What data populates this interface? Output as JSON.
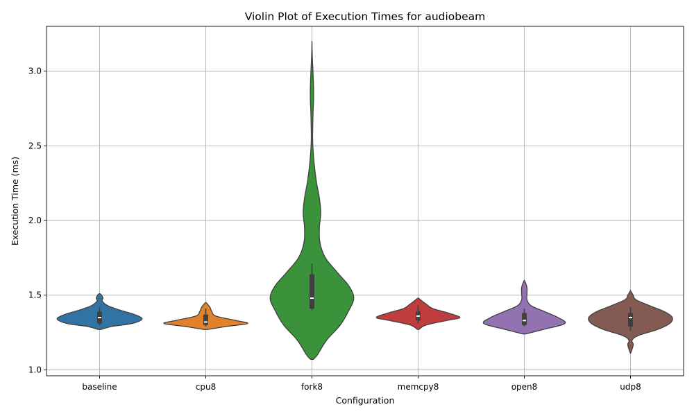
{
  "chart_data": {
    "type": "violin",
    "title": "Violin Plot of Execution Times for audiobeam",
    "xlabel": "Configuration",
    "ylabel": "Execution Time (ms)",
    "categories": [
      "baseline",
      "cpu8",
      "fork8",
      "memcpy8",
      "open8",
      "udp8"
    ],
    "colors": [
      "#3274a1",
      "#e1812c",
      "#3a923a",
      "#c03d3e",
      "#9372b2",
      "#845b53"
    ],
    "ylim": [
      0.96,
      3.3
    ],
    "yticks": [
      1.0,
      1.5,
      2.0,
      2.5,
      3.0
    ],
    "ytick_labels": [
      "1.0",
      "1.5",
      "2.0",
      "2.5",
      "3.0"
    ],
    "grid": true,
    "series": [
      {
        "category": "baseline",
        "min": 1.27,
        "max": 1.51,
        "q1": 1.31,
        "median": 1.35,
        "q3": 1.39,
        "whisker_low": 1.3,
        "whisker_high": 1.42,
        "density": [
          [
            1.27,
            0.02
          ],
          [
            1.29,
            0.18
          ],
          [
            1.31,
            0.48
          ],
          [
            1.34,
            0.63
          ],
          [
            1.37,
            0.52
          ],
          [
            1.4,
            0.3
          ],
          [
            1.43,
            0.12
          ],
          [
            1.46,
            0.04
          ],
          [
            1.48,
            0.05
          ],
          [
            1.5,
            0.03
          ],
          [
            1.51,
            0.005
          ]
        ]
      },
      {
        "category": "cpu8",
        "min": 1.27,
        "max": 1.45,
        "q1": 1.3,
        "median": 1.32,
        "q3": 1.37,
        "whisker_low": 1.29,
        "whisker_high": 1.41,
        "density": [
          [
            1.27,
            0.03
          ],
          [
            1.29,
            0.3
          ],
          [
            1.31,
            0.62
          ],
          [
            1.33,
            0.45
          ],
          [
            1.36,
            0.15
          ],
          [
            1.39,
            0.09
          ],
          [
            1.42,
            0.06
          ],
          [
            1.45,
            0.005
          ]
        ]
      },
      {
        "category": "fork8",
        "min": 1.07,
        "max": 3.2,
        "q1": 1.41,
        "median": 1.48,
        "q3": 1.64,
        "whisker_low": 1.4,
        "whisker_high": 1.71,
        "density": [
          [
            1.07,
            0.02
          ],
          [
            1.1,
            0.08
          ],
          [
            1.2,
            0.22
          ],
          [
            1.3,
            0.42
          ],
          [
            1.4,
            0.55
          ],
          [
            1.48,
            0.62
          ],
          [
            1.56,
            0.55
          ],
          [
            1.65,
            0.38
          ],
          [
            1.75,
            0.2
          ],
          [
            1.85,
            0.12
          ],
          [
            1.95,
            0.11
          ],
          [
            2.05,
            0.13
          ],
          [
            2.15,
            0.11
          ],
          [
            2.25,
            0.07
          ],
          [
            2.35,
            0.04
          ],
          [
            2.45,
            0.02
          ],
          [
            2.55,
            0.01
          ],
          [
            2.7,
            0.015
          ],
          [
            2.85,
            0.025
          ],
          [
            3.0,
            0.015
          ],
          [
            3.1,
            0.005
          ],
          [
            3.2,
            0.0
          ]
        ]
      },
      {
        "category": "memcpy8",
        "min": 1.27,
        "max": 1.48,
        "q1": 1.33,
        "median": 1.36,
        "q3": 1.39,
        "whisker_low": 1.31,
        "whisker_high": 1.43,
        "density": [
          [
            1.27,
            0.01
          ],
          [
            1.3,
            0.12
          ],
          [
            1.33,
            0.42
          ],
          [
            1.35,
            0.62
          ],
          [
            1.38,
            0.45
          ],
          [
            1.41,
            0.22
          ],
          [
            1.44,
            0.12
          ],
          [
            1.46,
            0.06
          ],
          [
            1.48,
            0.005
          ]
        ]
      },
      {
        "category": "open8",
        "min": 1.24,
        "max": 1.6,
        "q1": 1.3,
        "median": 1.33,
        "q3": 1.38,
        "whisker_low": 1.29,
        "whisker_high": 1.41,
        "density": [
          [
            1.24,
            0.02
          ],
          [
            1.27,
            0.28
          ],
          [
            1.31,
            0.6
          ],
          [
            1.35,
            0.5
          ],
          [
            1.39,
            0.3
          ],
          [
            1.43,
            0.1
          ],
          [
            1.47,
            0.04
          ],
          [
            1.51,
            0.04
          ],
          [
            1.55,
            0.04
          ],
          [
            1.58,
            0.02
          ],
          [
            1.6,
            0.0
          ]
        ]
      },
      {
        "category": "udp8",
        "min": 1.11,
        "max": 1.53,
        "q1": 1.29,
        "median": 1.35,
        "q3": 1.38,
        "whisker_low": 1.26,
        "whisker_high": 1.42,
        "density": [
          [
            1.11,
            0.0
          ],
          [
            1.14,
            0.025
          ],
          [
            1.17,
            0.04
          ],
          [
            1.2,
            0.025
          ],
          [
            1.23,
            0.12
          ],
          [
            1.27,
            0.4
          ],
          [
            1.31,
            0.58
          ],
          [
            1.35,
            0.62
          ],
          [
            1.39,
            0.5
          ],
          [
            1.43,
            0.28
          ],
          [
            1.47,
            0.08
          ],
          [
            1.5,
            0.04
          ],
          [
            1.53,
            0.0
          ]
        ]
      }
    ]
  }
}
